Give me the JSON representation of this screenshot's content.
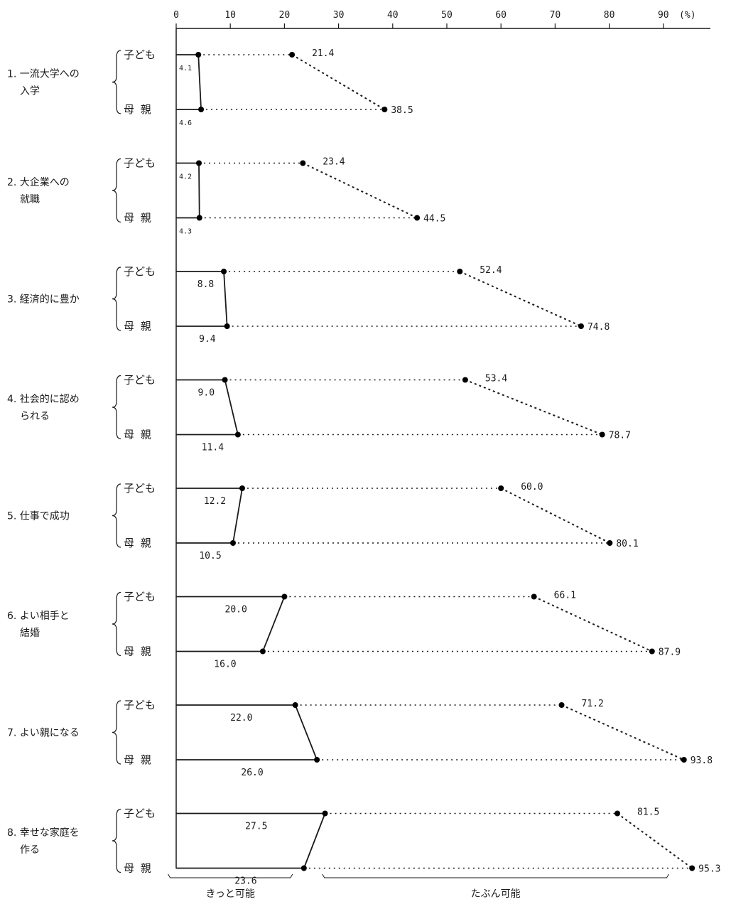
{
  "chart_data": {
    "type": "dot-line",
    "axis": {
      "min": 0,
      "max": 90,
      "ticks": [
        0,
        10,
        20,
        30,
        40,
        50,
        60,
        70,
        80,
        90
      ],
      "unit": "(%)"
    },
    "series_labels": [
      "子ども",
      "母 親"
    ],
    "groups": [
      {
        "label": "1. 一流大学への入学",
        "lines": [
          "1. 一流大学への",
          "入学"
        ],
        "kitto": [
          4.1,
          4.6
        ],
        "tabun": [
          21.4,
          38.5
        ],
        "kitto_labels": [
          "4.1",
          "4.6"
        ],
        "tabun_labels": [
          "21.4",
          "38.5"
        ]
      },
      {
        "label": "2. 大企業への就職",
        "lines": [
          "2. 大企業への",
          "就職"
        ],
        "kitto": [
          4.2,
          4.3
        ],
        "tabun": [
          23.4,
          44.5
        ],
        "kitto_labels": [
          "4.2",
          "4.3"
        ],
        "tabun_labels": [
          "23.4",
          "44.5"
        ]
      },
      {
        "label": "3. 経済的に豊か",
        "lines": [
          "3. 経済的に豊か"
        ],
        "kitto": [
          8.8,
          9.4
        ],
        "tabun": [
          52.4,
          74.8
        ],
        "kitto_labels": [
          "8.8",
          "9.4"
        ],
        "tabun_labels": [
          "52.4",
          "74.8"
        ]
      },
      {
        "label": "4. 社会的に認められる",
        "lines": [
          "4. 社会的に認め",
          "られる"
        ],
        "kitto": [
          9.0,
          11.4
        ],
        "tabun": [
          53.4,
          78.7
        ],
        "kitto_labels": [
          "9.0",
          "11.4"
        ],
        "tabun_labels": [
          "53.4",
          "78.7"
        ]
      },
      {
        "label": "5. 仕事で成功",
        "lines": [
          "5. 仕事で成功"
        ],
        "kitto": [
          12.2,
          10.5
        ],
        "tabun": [
          60.0,
          80.1
        ],
        "kitto_labels": [
          "12.2",
          "10.5"
        ],
        "tabun_labels": [
          "60.0",
          "80.1"
        ]
      },
      {
        "label": "6. よい相手と結婚",
        "lines": [
          "6. よい相手と",
          "結婚"
        ],
        "kitto": [
          20.0,
          16.0
        ],
        "tabun": [
          66.1,
          87.9
        ],
        "kitto_labels": [
          "20.0",
          "16.0"
        ],
        "tabun_labels": [
          "66.1",
          "87.9"
        ]
      },
      {
        "label": "7. よい親になる",
        "lines": [
          "7. よい親になる"
        ],
        "kitto": [
          22.0,
          26.0
        ],
        "tabun": [
          71.2,
          93.8
        ],
        "kitto_labels": [
          "22.0",
          "26.0"
        ],
        "tabun_labels": [
          "71.2",
          "93.8"
        ]
      },
      {
        "label": "8. 幸せな家庭を作る",
        "lines": [
          "8. 幸せな家庭を",
          "作る"
        ],
        "kitto": [
          27.5,
          23.6
        ],
        "tabun": [
          81.5,
          95.3
        ],
        "kitto_labels": [
          "27.5",
          "23.6"
        ],
        "tabun_labels": [
          "81.5",
          "95.3"
        ]
      }
    ],
    "bracket_labels": [
      "きっと可能",
      "たぶん可能"
    ]
  }
}
